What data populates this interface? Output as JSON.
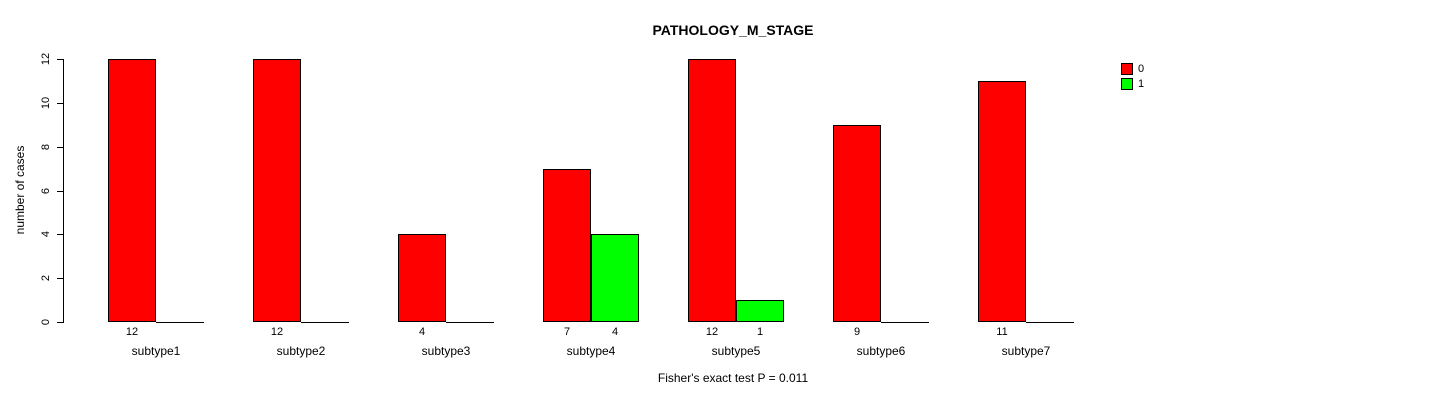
{
  "chart_data": {
    "type": "bar",
    "title": "PATHOLOGY_M_STAGE",
    "ylabel": "number of cases",
    "xlabel": "",
    "annotation": "Fisher's exact test P = 0.011",
    "categories": [
      "subtype1",
      "subtype2",
      "subtype3",
      "subtype4",
      "subtype5",
      "subtype6",
      "subtype7"
    ],
    "series": [
      {
        "name": "0",
        "color": "#ff0000",
        "values": [
          12,
          12,
          4,
          7,
          12,
          9,
          11
        ]
      },
      {
        "name": "1",
        "color": "#00ff00",
        "values": [
          0,
          0,
          0,
          4,
          1,
          0,
          0
        ]
      }
    ],
    "ylim": [
      0,
      12
    ],
    "yticks": [
      0,
      2,
      4,
      6,
      8,
      10,
      12
    ],
    "grid": false,
    "legend_position": "top-right",
    "bar_value_labels": "shown under each nonzero bar",
    "colors": {
      "background": "#ffffff",
      "axis": "#000000",
      "text": "#000000"
    }
  }
}
